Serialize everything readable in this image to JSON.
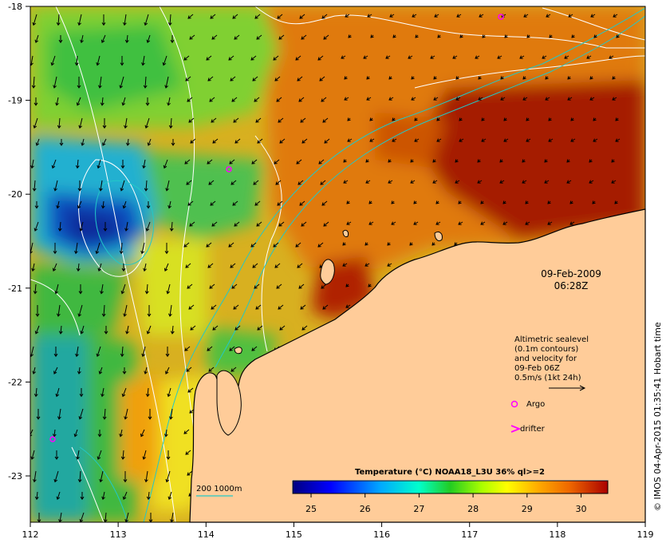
{
  "map": {
    "x_ticks": [
      "112",
      "113",
      "114",
      "115",
      "116",
      "117",
      "118",
      "119"
    ],
    "y_ticks": [
      "-18",
      "-19",
      "-20",
      "-21",
      "-22",
      "-23"
    ],
    "date": "09-Feb-2009",
    "time": "06:28Z"
  },
  "legend": {
    "line1": "Altimetric sealevel",
    "line2": "(0.1m contours)",
    "line3": "and velocity for",
    "line4": "09-Feb 06Z",
    "line5": "0.5m/s (1kt 24h)",
    "argo_label": "Argo",
    "drifter_label": "drifter",
    "depth_label": "200  1000m"
  },
  "colorbar": {
    "title": "Temperature (°C) NOAA18_L3U 36% ql>=2",
    "ticks": [
      "25",
      "26",
      "27",
      "28",
      "29",
      "30"
    ]
  },
  "credit": "© IMOS 04-Apr-2015 01:35:41 Hobart time",
  "colors": {
    "land": "#ffcc99",
    "argo": "#ff00ff",
    "depth_contour": "#22c8c8",
    "sealevel_contour": "#ffffff"
  }
}
